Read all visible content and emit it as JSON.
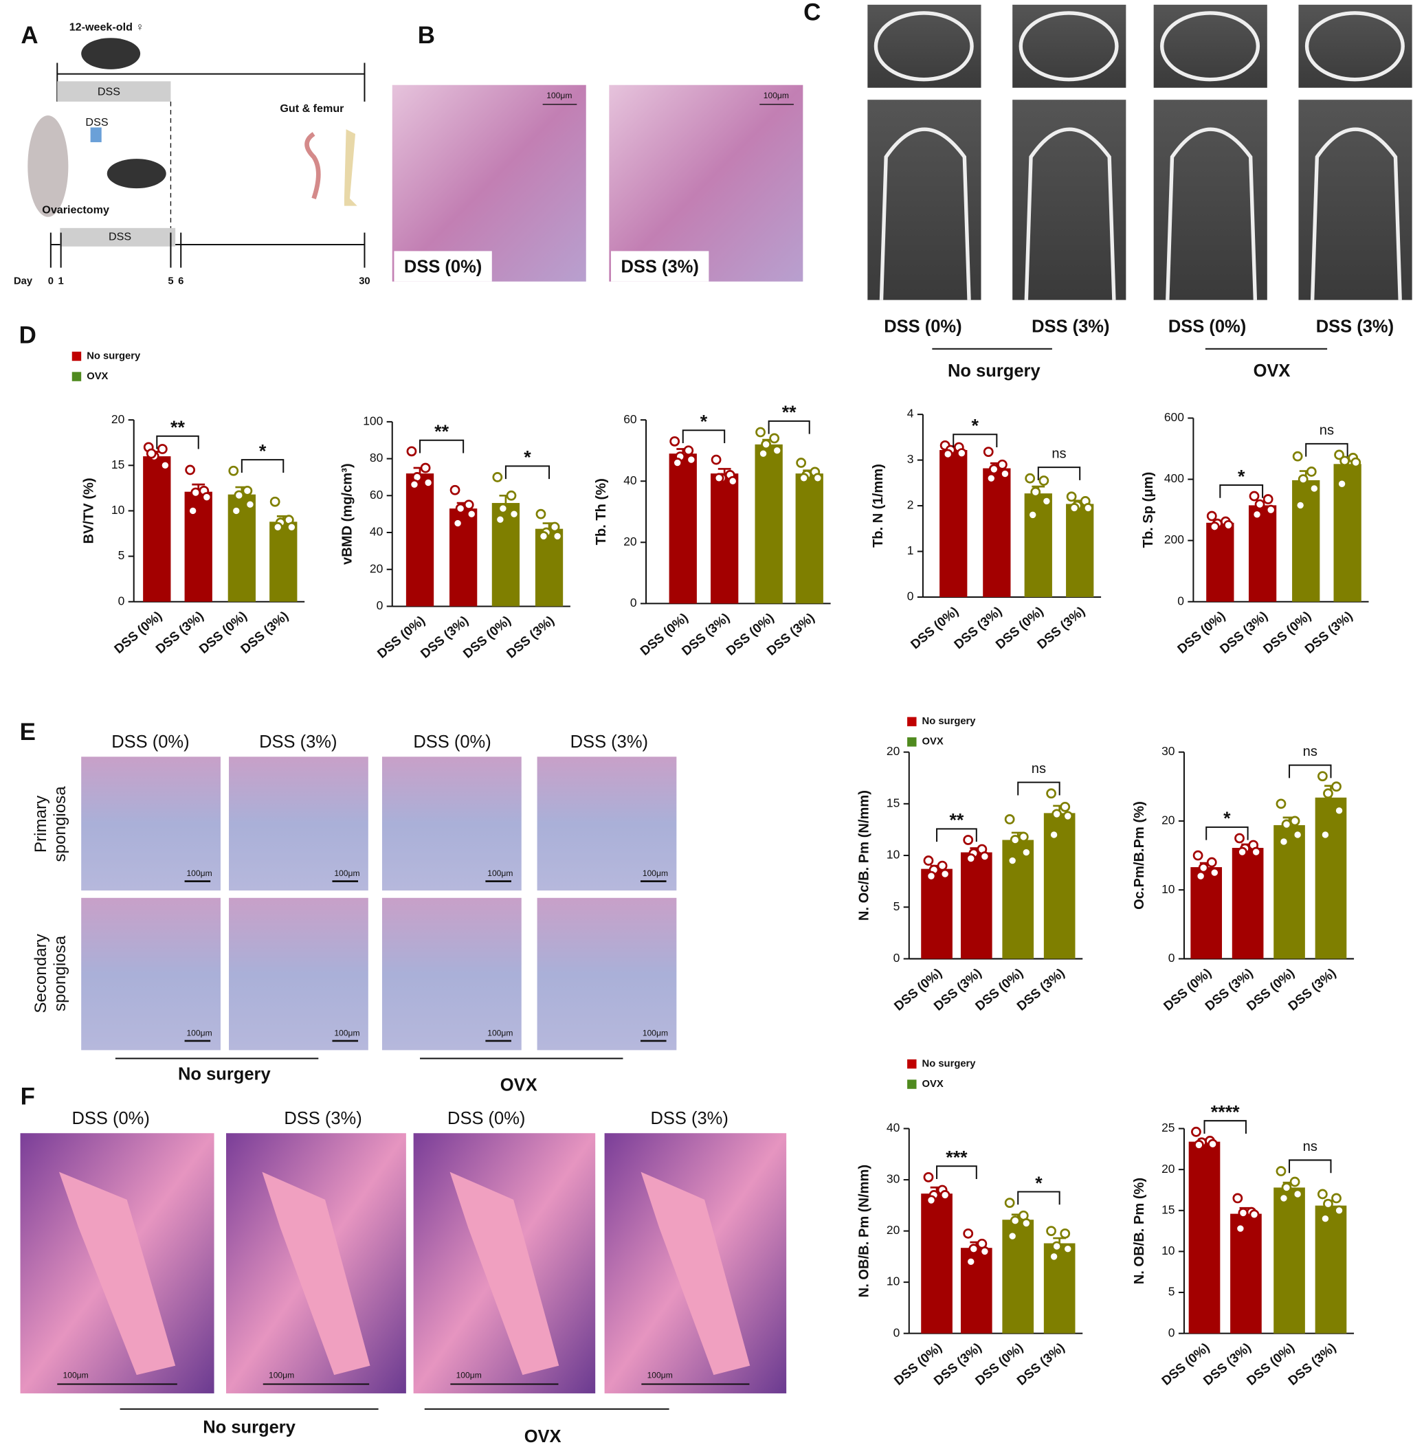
{
  "panel_labels": [
    "A",
    "B",
    "C",
    "D",
    "E",
    "F"
  ],
  "timeline": {
    "age": "12-week-old ♀",
    "dss_top": "DSS",
    "dss_bottle": "DSS",
    "endpoint": "Gut & femur",
    "surgery": "Ovariectomy",
    "dss_bottom": "DSS",
    "day_label": "Day",
    "days": [
      0,
      1,
      5,
      6,
      30
    ]
  },
  "scale_bar": "100μm",
  "panel_b": {
    "captions": [
      "DSS (0%)",
      "DSS (3%)"
    ]
  },
  "panel_c": {
    "captions": [
      "DSS (0%)",
      "DSS (3%)",
      "DSS (0%)",
      "DSS (3%)"
    ],
    "groups": [
      "No surgery",
      "OVX"
    ]
  },
  "panel_e": {
    "columns": [
      "DSS (0%)",
      "DSS (3%)",
      "DSS (0%)",
      "DSS (3%)"
    ],
    "rows": [
      [
        "Primary",
        "spongiosa"
      ],
      [
        "Secondary",
        "spongiosa"
      ]
    ],
    "groups": [
      "No surgery",
      "OVX"
    ]
  },
  "panel_f": {
    "columns": [
      "DSS (0%)",
      "DSS (3%)",
      "DSS (0%)",
      "DSS (3%)"
    ],
    "groups": [
      "No surgery",
      "OVX"
    ]
  },
  "chart_data": [
    {
      "type": "bar",
      "ylabel": "BV/TV (%)",
      "categories": [
        "DSS (0%)",
        "DSS (3%)",
        "DSS (0%)",
        "DSS (3%)"
      ],
      "values": [
        16,
        12.1,
        11.8,
        8.8
      ],
      "errors": [
        0.5,
        0.8,
        0.8,
        0.6
      ],
      "points": [
        [
          17,
          16.8,
          16,
          15,
          16.3
        ],
        [
          14.5,
          12.2,
          12,
          11.5,
          10
        ],
        [
          14.4,
          12.2,
          11.7,
          10.7,
          10
        ],
        [
          11,
          9,
          8.7,
          8.2,
          8.2
        ]
      ],
      "colors": [
        "#a30000",
        "#a30000",
        "#7f7f00",
        "#7f7f00"
      ],
      "ylim": [
        0,
        20
      ],
      "yticks": [
        0,
        5,
        10,
        15,
        20
      ],
      "significance": [
        {
          "from": 0,
          "to": 1,
          "label": "**"
        },
        {
          "from": 2,
          "to": 3,
          "label": "*"
        }
      ],
      "legend": [
        {
          "name": "No surgery",
          "color": "#c00000"
        },
        {
          "name": "OVX",
          "color": "#4f8a1e"
        }
      ]
    },
    {
      "type": "bar",
      "ylabel": "vBMD (mg/cm³)",
      "categories": [
        "DSS (0%)",
        "DSS (3%)",
        "DSS (0%)",
        "DSS (3%)"
      ],
      "values": [
        72,
        53,
        56,
        42
      ],
      "errors": [
        3,
        3,
        4,
        3
      ],
      "points": [
        [
          84,
          75,
          70,
          67,
          66
        ],
        [
          63,
          55,
          53,
          50,
          45
        ],
        [
          70,
          60,
          53,
          50,
          47
        ],
        [
          50,
          43,
          40,
          38,
          38
        ]
      ],
      "colors": [
        "#a30000",
        "#a30000",
        "#7f7f00",
        "#7f7f00"
      ],
      "ylim": [
        0,
        100
      ],
      "yticks": [
        0,
        20,
        40,
        60,
        80,
        100
      ],
      "significance": [
        {
          "from": 0,
          "to": 1,
          "label": "**"
        },
        {
          "from": 2,
          "to": 3,
          "label": "*"
        }
      ]
    },
    {
      "type": "bar",
      "ylabel": "Tb. Th (%)",
      "categories": [
        "DSS (0%)",
        "DSS (3%)",
        "DSS (0%)",
        "DSS (3%)"
      ],
      "values": [
        49,
        42.5,
        52,
        42.5
      ],
      "errors": [
        1.5,
        1.5,
        1.5,
        1
      ],
      "points": [
        [
          53,
          50,
          48,
          47,
          46
        ],
        [
          47,
          42,
          41,
          40,
          41
        ],
        [
          56,
          54,
          52,
          50,
          49
        ],
        [
          46,
          43,
          42,
          41,
          41
        ]
      ],
      "colors": [
        "#a30000",
        "#a30000",
        "#7f7f00",
        "#7f7f00"
      ],
      "ylim": [
        0,
        60
      ],
      "yticks": [
        0,
        20,
        40,
        60
      ],
      "significance": [
        {
          "from": 0,
          "to": 1,
          "label": "*"
        },
        {
          "from": 2,
          "to": 3,
          "label": "**"
        }
      ]
    },
    {
      "type": "bar",
      "ylabel": "Tb. N (1/mm)",
      "categories": [
        "DSS (0%)",
        "DSS (3%)",
        "DSS (0%)",
        "DSS (3%)"
      ],
      "values": [
        3.22,
        2.82,
        2.27,
        2.04
      ],
      "errors": [
        0.05,
        0.11,
        0.15,
        0.07
      ],
      "points": [
        [
          3.32,
          3.28,
          3.22,
          3.15,
          3.13
        ],
        [
          3.18,
          2.9,
          2.8,
          2.7,
          2.6
        ],
        [
          2.6,
          2.55,
          2.3,
          2.1,
          1.8
        ],
        [
          2.2,
          2.1,
          2.0,
          1.95,
          1.95
        ]
      ],
      "colors": [
        "#a30000",
        "#a30000",
        "#7f7f00",
        "#7f7f00"
      ],
      "ylim": [
        0,
        4
      ],
      "yticks": [
        0,
        1,
        2,
        3,
        4
      ],
      "significance": [
        {
          "from": 0,
          "to": 1,
          "label": "*"
        },
        {
          "from": 2,
          "to": 3,
          "label": "ns"
        }
      ]
    },
    {
      "type": "bar",
      "ylabel": "Tb. Sp (μm)",
      "categories": [
        "DSS (0%)",
        "DSS (3%)",
        "DSS (0%)",
        "DSS (3%)"
      ],
      "values": [
        258,
        315,
        397,
        450
      ],
      "errors": [
        7,
        12,
        30,
        18
      ],
      "points": [
        [
          280,
          262,
          255,
          250,
          245
        ],
        [
          345,
          335,
          318,
          300,
          285
        ],
        [
          475,
          425,
          400,
          370,
          315
        ],
        [
          480,
          470,
          460,
          455,
          385
        ]
      ],
      "colors": [
        "#a30000",
        "#a30000",
        "#7f7f00",
        "#7f7f00"
      ],
      "ylim": [
        0,
        600
      ],
      "yticks": [
        0,
        200,
        400,
        600
      ],
      "significance": [
        {
          "from": 0,
          "to": 1,
          "label": "*"
        },
        {
          "from": 2,
          "to": 3,
          "label": "ns"
        }
      ]
    },
    {
      "type": "bar",
      "ylabel": "N. Oc/B. Pm (N/mm)",
      "categories": [
        "DSS (0%)",
        "DSS (3%)",
        "DSS (0%)",
        "DSS (3%)"
      ],
      "values": [
        8.7,
        10.3,
        11.5,
        14.1
      ],
      "errors": [
        0.3,
        0.4,
        0.7,
        0.7
      ],
      "points": [
        [
          9.5,
          9.0,
          8.6,
          8.2,
          8.0
        ],
        [
          11.5,
          10.6,
          10.2,
          9.9,
          9.7
        ],
        [
          13.5,
          11.8,
          11.5,
          10.3,
          9.5
        ],
        [
          16,
          14.7,
          14,
          13.8,
          12
        ]
      ],
      "colors": [
        "#a30000",
        "#a30000",
        "#7f7f00",
        "#7f7f00"
      ],
      "ylim": [
        0,
        20
      ],
      "yticks": [
        0,
        5,
        10,
        15,
        20
      ],
      "significance": [
        {
          "from": 0,
          "to": 1,
          "label": "**"
        },
        {
          "from": 2,
          "to": 3,
          "label": "ns"
        }
      ],
      "legend": [
        {
          "name": "No surgery",
          "color": "#c00000"
        },
        {
          "name": "OVX",
          "color": "#4f8a1e"
        }
      ]
    },
    {
      "type": "bar",
      "ylabel": "Oc.Pm/B.Pm (%)",
      "categories": [
        "DSS (0%)",
        "DSS (3%)",
        "DSS (0%)",
        "DSS (3%)"
      ],
      "values": [
        13.3,
        16.1,
        19.4,
        23.4
      ],
      "errors": [
        0.6,
        0.5,
        1.1,
        1.7
      ],
      "points": [
        [
          15,
          14,
          13.2,
          12.5,
          12
        ],
        [
          17.5,
          16.5,
          16,
          15.5,
          15.5
        ],
        [
          22.5,
          20,
          19.5,
          18,
          17
        ],
        [
          26.5,
          25,
          24,
          21.5,
          18
        ]
      ],
      "colors": [
        "#a30000",
        "#a30000",
        "#7f7f00",
        "#7f7f00"
      ],
      "ylim": [
        0,
        30
      ],
      "yticks": [
        0,
        10,
        20,
        30
      ],
      "significance": [
        {
          "from": 0,
          "to": 1,
          "label": "*"
        },
        {
          "from": 2,
          "to": 3,
          "label": "ns"
        }
      ]
    },
    {
      "type": "bar",
      "ylabel": "N. OB/B. Pm (N/mm)",
      "categories": [
        "DSS (0%)",
        "DSS (3%)",
        "DSS (0%)",
        "DSS (3%)"
      ],
      "values": [
        27.3,
        16.7,
        22.2,
        17.6
      ],
      "errors": [
        1.2,
        1.1,
        1,
        1
      ],
      "points": [
        [
          30.5,
          28,
          27,
          27,
          26
        ],
        [
          19.5,
          17.5,
          16.5,
          16,
          14
        ],
        [
          25.5,
          23,
          22,
          21.5,
          19
        ],
        [
          20,
          19.5,
          17,
          16.5,
          15
        ]
      ],
      "colors": [
        "#a30000",
        "#a30000",
        "#7f7f00",
        "#7f7f00"
      ],
      "ylim": [
        0,
        40
      ],
      "yticks": [
        0,
        10,
        20,
        30,
        40
      ],
      "significance": [
        {
          "from": 0,
          "to": 1,
          "label": "***"
        },
        {
          "from": 2,
          "to": 3,
          "label": "*"
        }
      ],
      "legend": [
        {
          "name": "No surgery",
          "color": "#c00000"
        },
        {
          "name": "OVX",
          "color": "#4f8a1e"
        }
      ]
    },
    {
      "type": "bar",
      "ylabel": "N. OB/B. Pm (%)",
      "categories": [
        "DSS (0%)",
        "DSS (3%)",
        "DSS (0%)",
        "DSS (3%)"
      ],
      "values": [
        23.4,
        14.6,
        17.8,
        15.6
      ],
      "errors": [
        0.3,
        0.7,
        0.6,
        0.6
      ],
      "points": [
        [
          24.6,
          23.5,
          23.3,
          23.1,
          23
        ],
        [
          16.5,
          14.8,
          14.7,
          14.5,
          12.8
        ],
        [
          19.8,
          18.5,
          17.8,
          17,
          16.5
        ],
        [
          17,
          16.5,
          15.8,
          15,
          14
        ]
      ],
      "colors": [
        "#a30000",
        "#a30000",
        "#7f7f00",
        "#7f7f00"
      ],
      "ylim": [
        0,
        25
      ],
      "yticks": [
        0,
        5,
        10,
        15,
        20,
        25
      ],
      "significance": [
        {
          "from": 0,
          "to": 1,
          "label": "****"
        },
        {
          "from": 2,
          "to": 3,
          "label": "ns"
        }
      ]
    }
  ]
}
